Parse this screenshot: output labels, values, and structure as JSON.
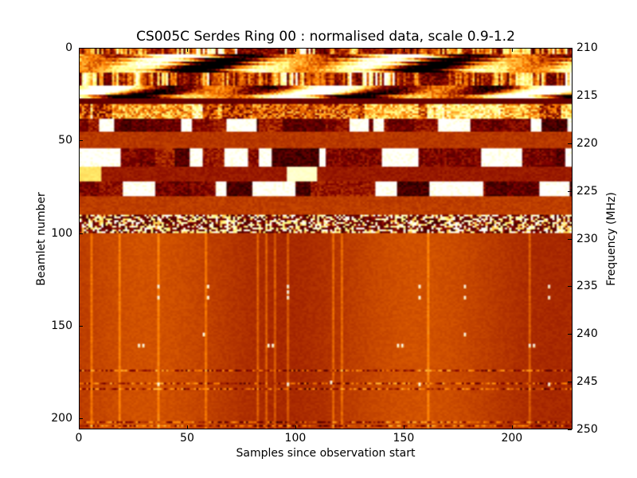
{
  "chart_data": {
    "type": "heatmap",
    "title": "CS005C Serdes Ring 00 : normalised data, scale 0.9-1.2",
    "xlabel": "Samples since observation start",
    "ylabel": "Beamlet number",
    "y2label": "Frequency (MHz)",
    "xlim": [
      0,
      228
    ],
    "ylim": [
      0,
      206
    ],
    "y2lim": [
      210,
      250
    ],
    "color_scale": [
      0.9,
      1.2
    ],
    "colormap": "afmhot",
    "x_ticks": [
      "0",
      "50",
      "100",
      "150",
      "200"
    ],
    "x_tick_values": [
      0,
      50,
      100,
      150,
      200
    ],
    "y_ticks": [
      "0",
      "50",
      "100",
      "150",
      "200"
    ],
    "y_tick_values": [
      0,
      50,
      100,
      150,
      200
    ],
    "y2_ticks": [
      "210",
      "215",
      "220",
      "225",
      "230",
      "235",
      "240",
      "245",
      "250"
    ],
    "y2_tick_values": [
      210,
      215,
      220,
      225,
      230,
      235,
      240,
      245,
      250
    ],
    "bands": [
      {
        "from": 0,
        "to": 3,
        "texture": "streaks",
        "level": 0.45
      },
      {
        "from": 3,
        "to": 13,
        "texture": "blobs",
        "level": 0.5
      },
      {
        "from": 13,
        "to": 20,
        "texture": "streaks",
        "level": 0.5
      },
      {
        "from": 20,
        "to": 27,
        "texture": "blobs",
        "level": 0.45
      },
      {
        "from": 27,
        "to": 30,
        "texture": "smooth",
        "level": 0.2
      },
      {
        "from": 30,
        "to": 38,
        "texture": "noise",
        "level": 0.4
      },
      {
        "from": 38,
        "to": 45,
        "texture": "blocks",
        "level": 0.45
      },
      {
        "from": 45,
        "to": 54,
        "texture": "smooth",
        "level": 0.36
      },
      {
        "from": 54,
        "to": 64,
        "texture": "blocks",
        "level": 0.45
      },
      {
        "from": 64,
        "to": 72,
        "texture": "smooth",
        "level": 0.3
      },
      {
        "from": 72,
        "to": 80,
        "texture": "blocks",
        "level": 0.45
      },
      {
        "from": 80,
        "to": 90,
        "texture": "smooth",
        "level": 0.37
      },
      {
        "from": 90,
        "to": 100,
        "texture": "checker",
        "level": 0.45
      },
      {
        "from": 100,
        "to": 206,
        "texture": "quiet",
        "level": 0.37
      }
    ],
    "vertical_lines": [
      5,
      18,
      36,
      58,
      82,
      86,
      90,
      96,
      117,
      121,
      161,
      208
    ],
    "horizontal_lines": [
      174,
      181,
      184,
      202,
      204
    ],
    "spikes": [
      [
        36,
        128
      ],
      [
        36,
        134
      ],
      [
        96,
        128
      ],
      [
        96,
        131
      ],
      [
        96,
        134
      ],
      [
        157,
        128
      ],
      [
        157,
        134
      ],
      [
        178,
        128
      ],
      [
        178,
        134
      ],
      [
        59,
        128
      ],
      [
        59,
        134
      ],
      [
        217,
        128
      ],
      [
        217,
        134
      ],
      [
        27,
        160
      ],
      [
        29,
        160
      ],
      [
        87,
        160
      ],
      [
        89,
        160
      ],
      [
        147,
        160
      ],
      [
        149,
        160
      ],
      [
        208,
        160
      ],
      [
        210,
        160
      ],
      [
        57,
        154
      ],
      [
        178,
        154
      ],
      [
        36,
        181
      ],
      [
        96,
        181
      ],
      [
        157,
        181
      ],
      [
        116,
        180
      ],
      [
        217,
        181
      ]
    ]
  }
}
